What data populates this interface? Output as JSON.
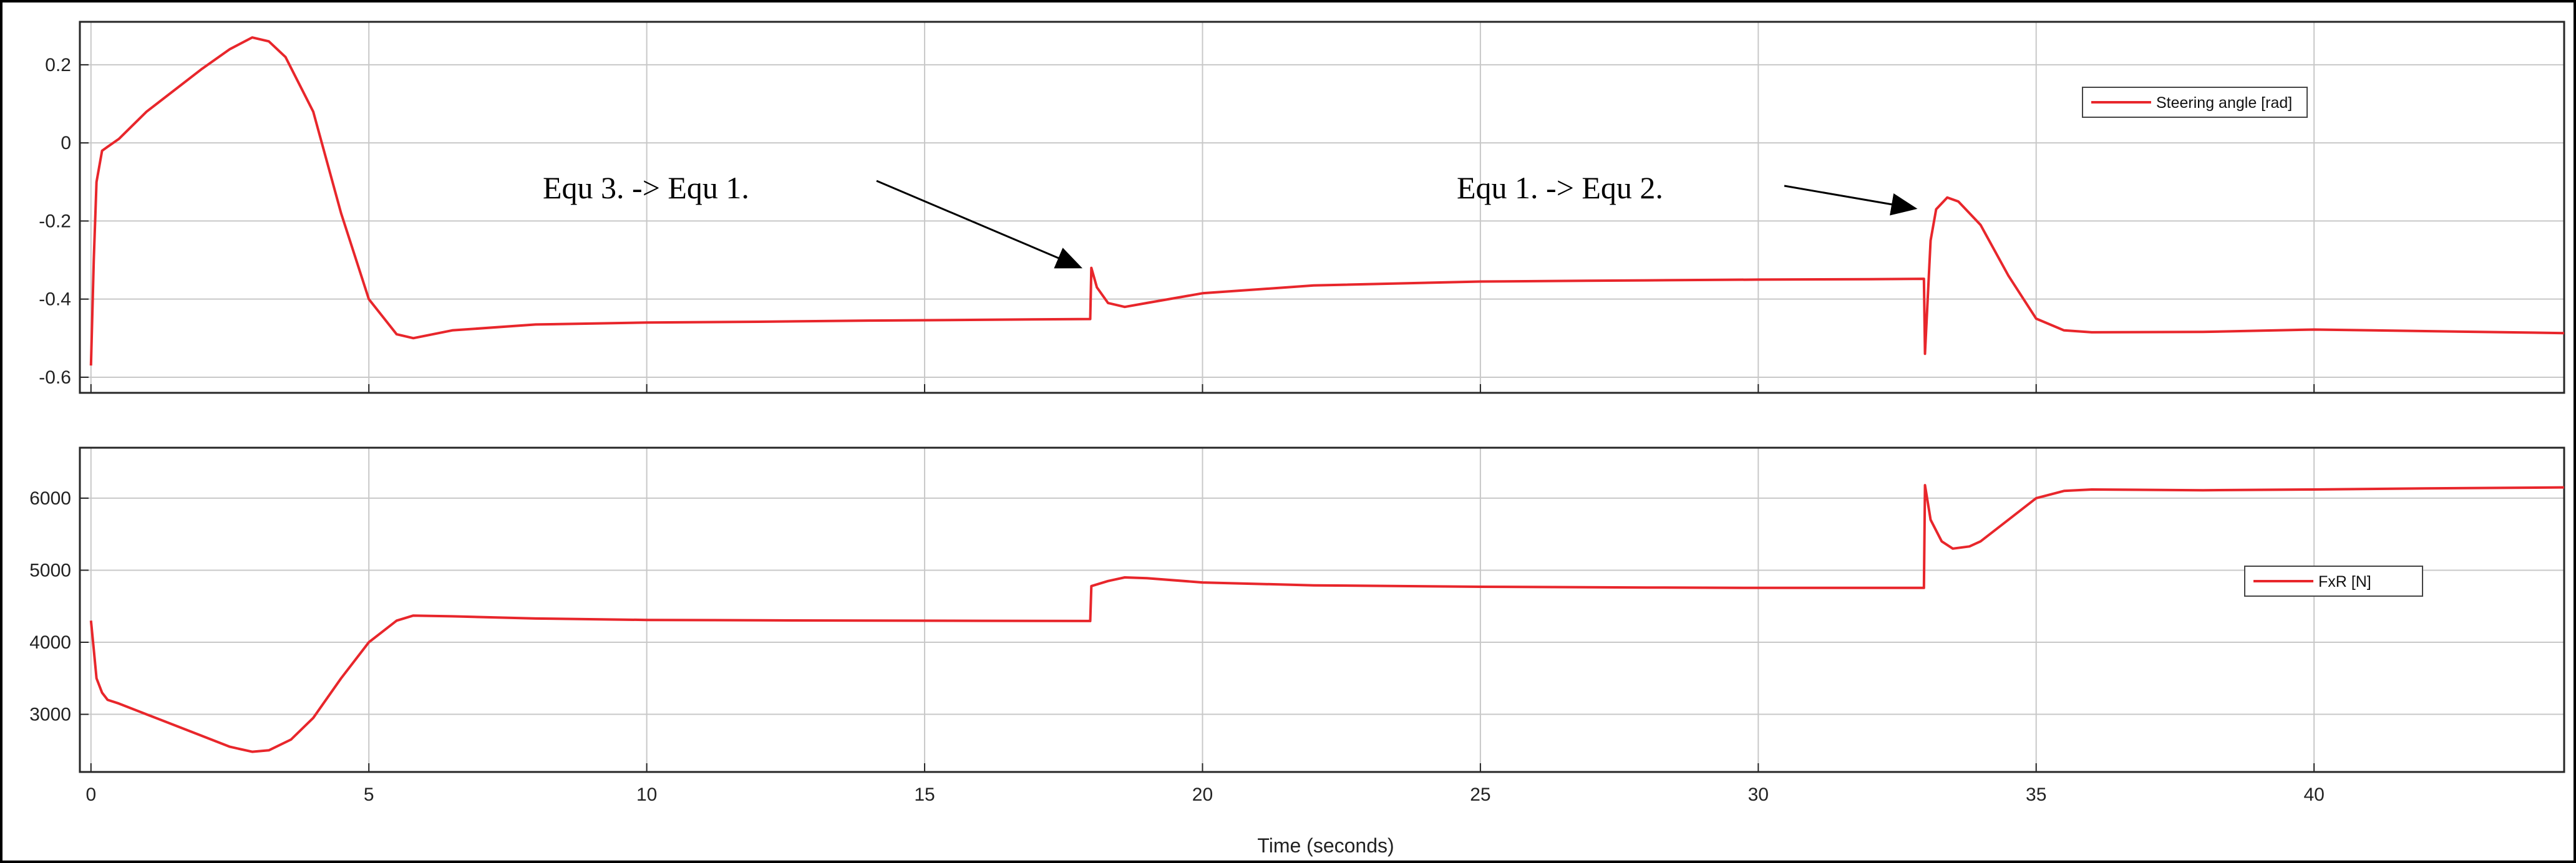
{
  "chart_data": [
    {
      "type": "line",
      "title": "",
      "xlabel": "",
      "ylabel": "",
      "xlim": [
        -0.2,
        44.5
      ],
      "ylim": [
        -0.64,
        0.31
      ],
      "x_ticks": [
        0,
        5,
        10,
        15,
        20,
        25,
        30,
        35,
        40
      ],
      "y_ticks": [
        -0.6,
        -0.4,
        -0.2,
        0,
        0.2
      ],
      "y_tick_labels": [
        "-0.6",
        "-0.4",
        "-0.2",
        "0",
        "0.2"
      ],
      "grid": true,
      "legend_position": "top-right",
      "series": [
        {
          "name": "Steering angle [rad]",
          "color": "#e8262b",
          "x": [
            0.0,
            0.05,
            0.1,
            0.2,
            0.3,
            0.5,
            1.0,
            2.0,
            2.5,
            2.9,
            3.2,
            3.5,
            4.0,
            4.5,
            5.0,
            5.5,
            5.8,
            6.5,
            8.0,
            10.0,
            12.0,
            14.0,
            16.0,
            17.98,
            18.0,
            18.1,
            18.3,
            18.6,
            19.0,
            20.0,
            22.0,
            25.0,
            28.0,
            30.0,
            32.0,
            32.98,
            33.0,
            33.1,
            33.2,
            33.4,
            33.6,
            33.8,
            34.0,
            34.5,
            35.0,
            35.5,
            36.0,
            38.0,
            40.0,
            42.0,
            44.5
          ],
          "y": [
            -0.57,
            -0.3,
            -0.1,
            -0.02,
            -0.01,
            0.01,
            0.08,
            0.19,
            0.24,
            0.27,
            0.26,
            0.22,
            0.08,
            -0.18,
            -0.4,
            -0.49,
            -0.5,
            -0.48,
            -0.465,
            -0.46,
            -0.458,
            -0.455,
            -0.453,
            -0.451,
            -0.32,
            -0.37,
            -0.41,
            -0.42,
            -0.41,
            -0.385,
            -0.365,
            -0.355,
            -0.352,
            -0.35,
            -0.349,
            -0.348,
            -0.54,
            -0.25,
            -0.17,
            -0.14,
            -0.15,
            -0.18,
            -0.21,
            -0.34,
            -0.45,
            -0.48,
            -0.485,
            -0.484,
            -0.478,
            -0.482,
            -0.487
          ]
        }
      ]
    },
    {
      "type": "line",
      "title": "",
      "xlabel": "Time (seconds)",
      "ylabel": "",
      "xlim": [
        -0.2,
        44.5
      ],
      "ylim": [
        2200,
        6700
      ],
      "x_ticks": [
        0,
        5,
        10,
        15,
        20,
        25,
        30,
        35,
        40
      ],
      "x_tick_labels": [
        "0",
        "5",
        "10",
        "15",
        "20",
        "25",
        "30",
        "35",
        "40"
      ],
      "y_ticks": [
        3000,
        4000,
        5000,
        6000
      ],
      "y_tick_labels": [
        "3000",
        "4000",
        "5000",
        "6000"
      ],
      "grid": true,
      "legend_position": "right",
      "series": [
        {
          "name": "FxR [N]",
          "color": "#e8262b",
          "x": [
            0.0,
            0.05,
            0.1,
            0.2,
            0.3,
            0.5,
            1.0,
            1.5,
            2.0,
            2.5,
            2.9,
            3.2,
            3.6,
            4.0,
            4.5,
            5.0,
            5.5,
            5.8,
            6.5,
            8.0,
            10.0,
            12.0,
            14.0,
            16.0,
            17.98,
            18.0,
            18.3,
            18.6,
            19.0,
            20.0,
            22.0,
            25.0,
            28.0,
            30.0,
            32.0,
            32.98,
            33.0,
            33.1,
            33.3,
            33.5,
            33.8,
            34.0,
            34.5,
            35.0,
            35.5,
            36.0,
            38.0,
            40.0,
            42.0,
            44.5
          ],
          "y": [
            4300,
            3900,
            3500,
            3300,
            3200,
            3150,
            3000,
            2850,
            2700,
            2550,
            2480,
            2500,
            2650,
            2950,
            3500,
            4000,
            4300,
            4370,
            4360,
            4330,
            4310,
            4305,
            4300,
            4298,
            4295,
            4780,
            4850,
            4900,
            4890,
            4830,
            4790,
            4770,
            4760,
            4755,
            4755,
            4755,
            6180,
            5700,
            5400,
            5300,
            5330,
            5400,
            5700,
            6000,
            6100,
            6120,
            6110,
            6120,
            6135,
            6150
          ]
        }
      ]
    }
  ],
  "annotations": [
    {
      "text": "Equ 3. -> Equ 1.",
      "target_x": 17.98,
      "target_y": -0.33
    },
    {
      "text": "Equ 1. -> Equ 2.",
      "target_x": 33.0,
      "target_y": -0.18
    }
  ],
  "colors": {
    "line": "#e8262b",
    "grid": "#c8c8c8",
    "axis": "#262626",
    "background": "#ffffff"
  }
}
